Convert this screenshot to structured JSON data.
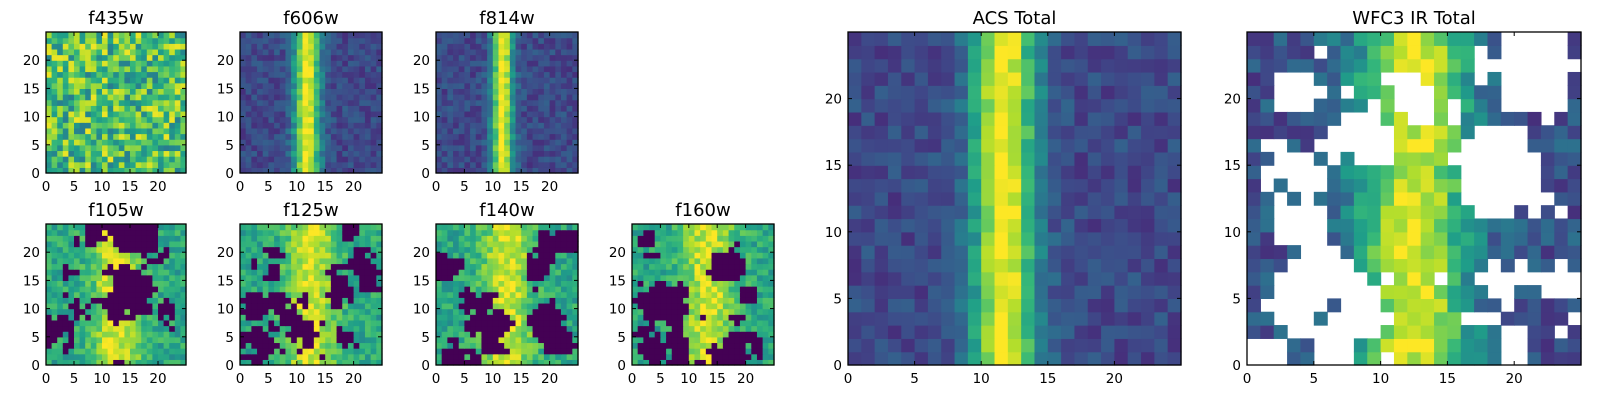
{
  "colormap": "viridis",
  "chart_data": [
    {
      "id": "f435w",
      "type": "heatmap",
      "title": "f435w",
      "grid_size": 25,
      "xlim": [
        0,
        25
      ],
      "ylim": [
        0,
        25
      ],
      "xticks": [
        0,
        5,
        10,
        15,
        20
      ],
      "yticks": [
        0,
        5,
        10,
        15,
        20
      ],
      "pattern": "noise",
      "level": 0.7,
      "spread": 0.28,
      "seed": 11
    },
    {
      "id": "f606w",
      "type": "heatmap",
      "title": "f606w",
      "grid_size": 25,
      "xlim": [
        0,
        25
      ],
      "ylim": [
        0,
        25
      ],
      "xticks": [
        0,
        5,
        10,
        15,
        20
      ],
      "yticks": [
        0,
        5,
        10,
        15,
        20
      ],
      "pattern": "stripe",
      "stripe": {
        "center": 11.3,
        "width": 1.6
      },
      "seed": 23
    },
    {
      "id": "f814w",
      "type": "heatmap",
      "title": "f814w",
      "grid_size": 25,
      "xlim": [
        0,
        25
      ],
      "ylim": [
        0,
        25
      ],
      "xticks": [
        0,
        5,
        10,
        15,
        20
      ],
      "yticks": [
        0,
        5,
        10,
        15,
        20
      ],
      "pattern": "stripe",
      "stripe": {
        "center": 11.2,
        "width": 1.3
      },
      "seed": 37
    },
    {
      "id": "f105w",
      "type": "heatmap",
      "title": "f105w",
      "grid_size": 25,
      "xlim": [
        0,
        25
      ],
      "ylim": [
        0,
        25
      ],
      "xticks": [
        0,
        5,
        10,
        15,
        20
      ],
      "yticks": [
        0,
        5,
        10,
        15,
        20
      ],
      "pattern": "patchy",
      "mask_fraction": 0.3,
      "hot_column": 12,
      "seed": 41
    },
    {
      "id": "f125w",
      "type": "heatmap",
      "title": "f125w",
      "grid_size": 25,
      "xlim": [
        0,
        25
      ],
      "ylim": [
        0,
        25
      ],
      "xticks": [
        0,
        5,
        10,
        15,
        20
      ],
      "yticks": [
        0,
        5,
        10,
        15,
        20
      ],
      "pattern": "patchy",
      "mask_fraction": 0.3,
      "hot_column": 12,
      "seed": 53
    },
    {
      "id": "f140w",
      "type": "heatmap",
      "title": "f140w",
      "grid_size": 25,
      "xlim": [
        0,
        25
      ],
      "ylim": [
        0,
        25
      ],
      "xticks": [
        0,
        5,
        10,
        15,
        20
      ],
      "yticks": [
        0,
        5,
        10,
        15,
        20
      ],
      "pattern": "patchy",
      "mask_fraction": 0.33,
      "hot_column": 12,
      "seed": 67
    },
    {
      "id": "f160w",
      "type": "heatmap",
      "title": "f160w",
      "grid_size": 25,
      "xlim": [
        0,
        25
      ],
      "ylim": [
        0,
        25
      ],
      "xticks": [
        0,
        5,
        10,
        15,
        20
      ],
      "yticks": [
        0,
        5,
        10,
        15,
        20
      ],
      "pattern": "patchy",
      "mask_fraction": 0.33,
      "hot_column": 13,
      "seed": 79
    },
    {
      "id": "acs_total",
      "type": "heatmap",
      "title": "ACS Total",
      "grid_size": 25,
      "xlim": [
        0,
        25
      ],
      "ylim": [
        0,
        25
      ],
      "xticks": [
        0,
        5,
        10,
        15,
        20
      ],
      "yticks": [
        0,
        5,
        10,
        15,
        20
      ],
      "pattern": "stripe",
      "stripe": {
        "center": 11.2,
        "width": 1.7
      },
      "seed": 89
    },
    {
      "id": "wfc3_ir_total",
      "type": "heatmap",
      "title": "WFC3 IR Total",
      "grid_size": 25,
      "xlim": [
        0,
        25
      ],
      "ylim": [
        0,
        25
      ],
      "xticks": [
        0,
        5,
        10,
        15,
        20
      ],
      "yticks": [
        0,
        5,
        10,
        15,
        20
      ],
      "pattern": "masked",
      "mask_fraction": 0.38,
      "hot_column": 12,
      "seed": 97
    }
  ]
}
